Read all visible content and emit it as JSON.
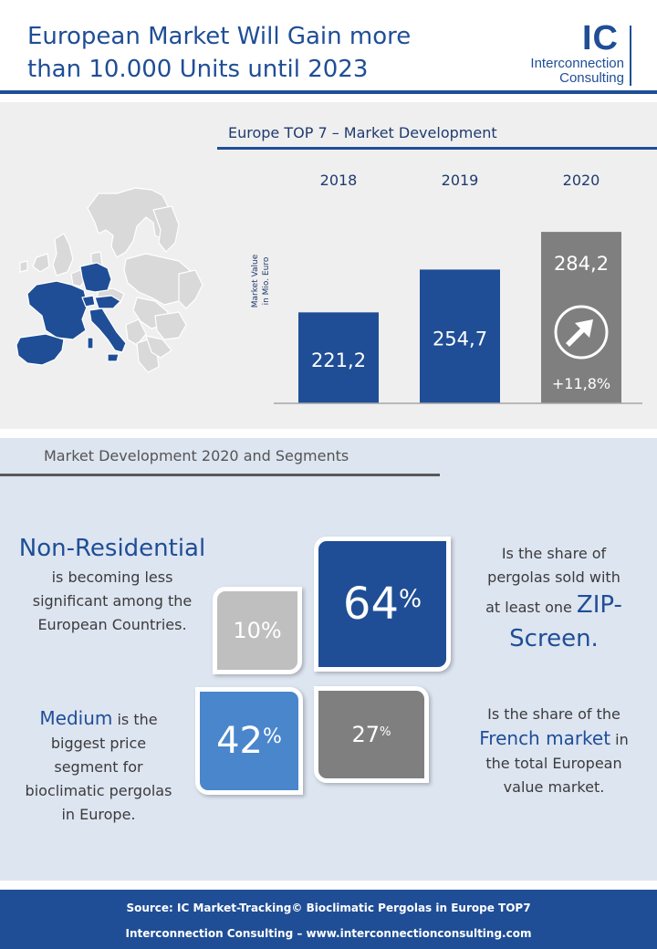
{
  "header": {
    "title_line1": "European Market Will Gain more",
    "title_line2": "than 10.000 Units until 2023",
    "logo_mark": "IC",
    "logo_line1": "Interconnection",
    "logo_line2": "Consulting"
  },
  "chart_data": {
    "type": "bar",
    "title": "Europe TOP 7 – Market Development",
    "categories": [
      "2018",
      "2019",
      "2020"
    ],
    "values": [
      221.2,
      254.7,
      284.2
    ],
    "value_labels": [
      "221,2",
      "254,7",
      "284,2"
    ],
    "ylabel_line1": "Market Value",
    "ylabel_line2": "in Mio. Euro",
    "growth_label": "+11,8%",
    "ylim": [
      0,
      300
    ],
    "bar_colors": [
      "#1f4e96",
      "#1f4e96",
      "#7f7f7f"
    ],
    "growth_icon": "arrow-right-circle-icon",
    "map_icon": "europe-map-icon"
  },
  "segments": {
    "title": "Market Development 2020 and Segments",
    "boxes": {
      "zip_value": "64",
      "nonres_value": "10",
      "medium_value": "42",
      "french_value": "27",
      "pct_sign": "%"
    },
    "nonres_head": "Non-Residential",
    "nonres_text": [
      "is becoming less",
      "significant among the",
      "European Countries."
    ],
    "zip_text": [
      "Is the share of",
      "pergolas sold with"
    ],
    "zip_line3_pre": "at least one ",
    "zip_hl1": "ZIP-",
    "zip_hl2": "Screen.",
    "medium_hl": "Medium",
    "medium_line1_post": " is the",
    "medium_text": [
      "biggest price",
      "segment for",
      "bioclimatic pergolas",
      "in Europe."
    ],
    "french_line1": "Is the share of the",
    "french_hl": "French market",
    "french_line2_post": " in",
    "french_text": [
      "the total European",
      "value market."
    ]
  },
  "footer": {
    "source": "Source: IC Market-Tracking© Bioclimatic Pergolas in Europe TOP7",
    "web": "Interconnection Consulting –  www.interconnectionconsulting.com"
  },
  "colors": {
    "primary": "#1f4e96",
    "grey": "#7f7f7f",
    "light_grey": "#bfbfbf",
    "mid_blue": "#4a86cc",
    "bg_light": "#efefef",
    "bg_blue": "#dde5f1"
  }
}
